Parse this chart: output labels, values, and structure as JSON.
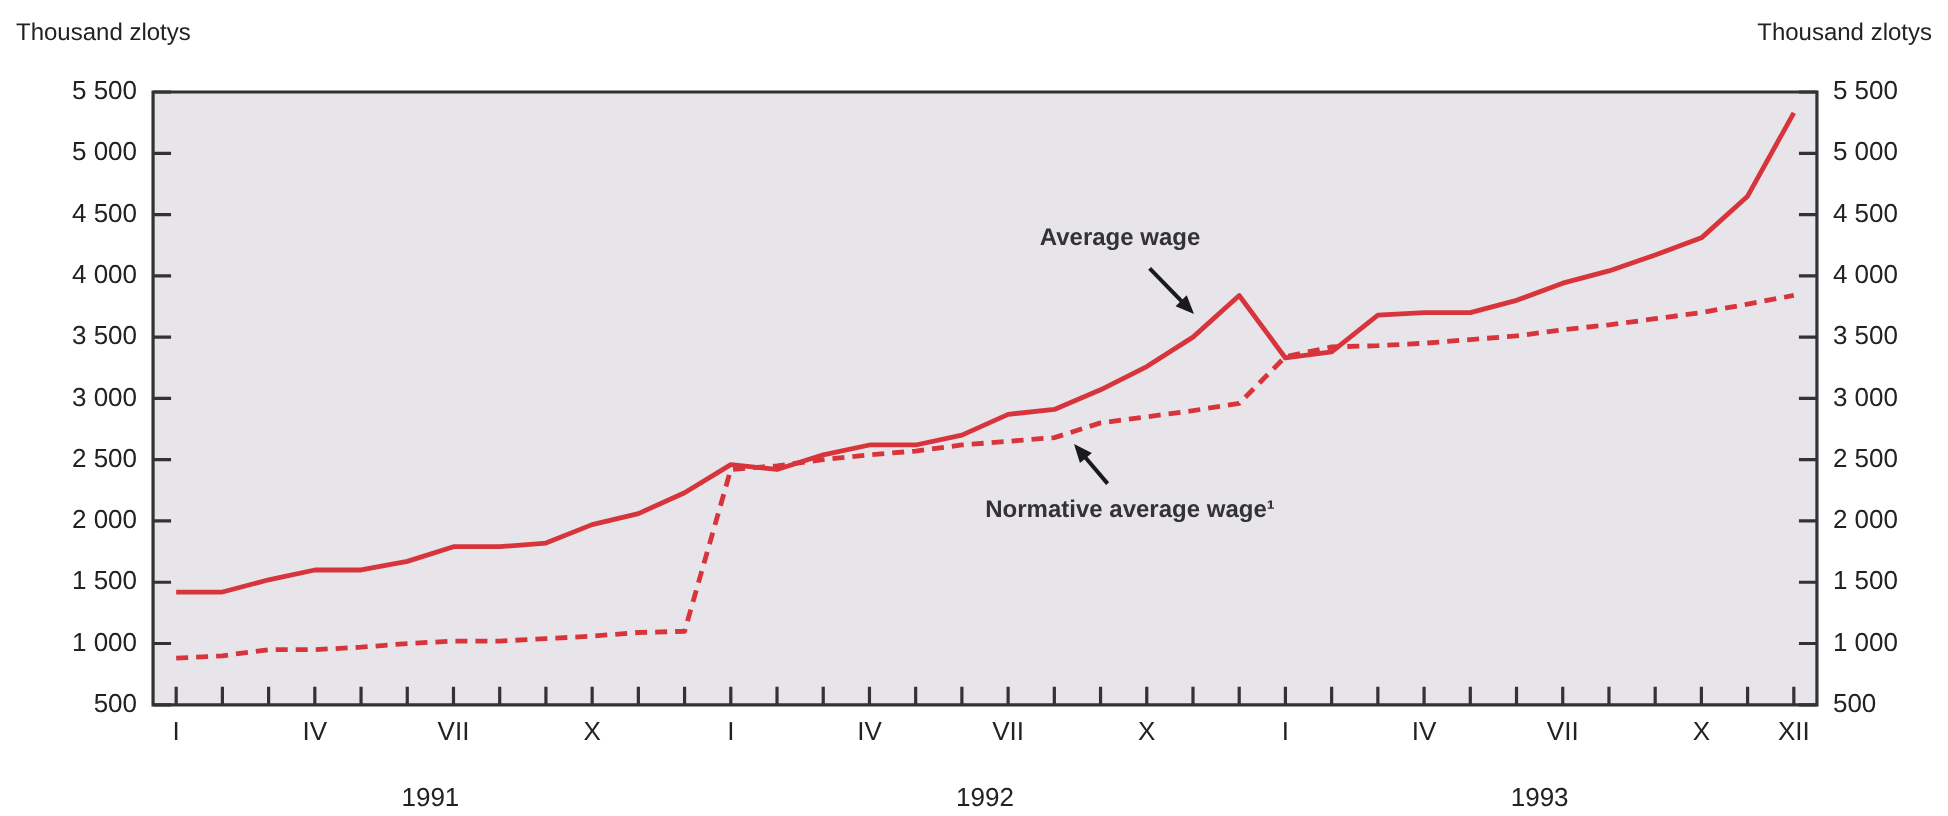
{
  "chart_data": {
    "type": "line",
    "ylabel": "Thousand zlotys",
    "y2label": "Thousand zlotys",
    "categories": [
      "I",
      null,
      null,
      "IV",
      null,
      null,
      "VII",
      null,
      null,
      "X",
      null,
      null,
      "I",
      null,
      null,
      "IV",
      null,
      null,
      "VII",
      null,
      null,
      "X",
      null,
      null,
      "I",
      null,
      null,
      "IV",
      null,
      null,
      "VII",
      null,
      null,
      "X",
      null,
      "XII"
    ],
    "series": [
      {
        "color": "#d8343c",
        "line_style": "solid",
        "values": [
          1420,
          1420,
          1520,
          1600,
          1600,
          1670,
          1790,
          1790,
          1820,
          1970,
          2060,
          2230,
          2460,
          2420,
          2540,
          2620,
          2620,
          2700,
          2870,
          2910,
          3070,
          3260,
          3500,
          3840,
          3330,
          3380,
          3680,
          3700,
          3700,
          3800,
          3940,
          4040,
          4170,
          4310,
          4650,
          5330
        ]
      },
      {
        "color": "#d8343c",
        "line_style": "dashed",
        "values": [
          880,
          900,
          950,
          950,
          970,
          1000,
          1020,
          1020,
          1040,
          1060,
          1090,
          1100,
          2420,
          2450,
          2500,
          2540,
          2570,
          2620,
          2650,
          2680,
          2800,
          2850,
          2900,
          2960,
          3340,
          3420,
          3430,
          3450,
          3480,
          3510,
          3560,
          3600,
          3650,
          3700,
          3770,
          3840
        ]
      }
    ],
    "ylim": [
      500,
      5500
    ],
    "yticks": [
      500,
      {
        "value": 1000,
        "label": "1 000"
      },
      {
        "value": 1500,
        "label": "1 500"
      },
      {
        "value": 2000,
        "label": "2 000"
      },
      {
        "value": 2500,
        "label": "2 500"
      },
      {
        "value": 3000,
        "label": "3 000"
      },
      {
        "value": 3500,
        "label": "3 500"
      },
      {
        "value": 4000,
        "label": "4 000"
      },
      {
        "value": 4500,
        "label": "4 500"
      },
      {
        "value": 5000,
        "label": "5 000"
      },
      {
        "value": 5500,
        "label": "5 500"
      }
    ],
    "y2lim": [
      500,
      5500
    ],
    "y2ticks": [
      500,
      {
        "value": 1000,
        "label": "1 000"
      },
      {
        "value": 1500,
        "label": "1 500"
      },
      {
        "value": 2000,
        "label": "2 000"
      },
      {
        "value": 2500,
        "label": "2 500"
      },
      {
        "value": 3000,
        "label": "3 000"
      },
      {
        "value": 3500,
        "label": "3 500"
      },
      {
        "value": 4000,
        "label": "4 000"
      },
      {
        "value": 4500,
        "label": "4 500"
      },
      {
        "value": 5000,
        "label": "5 000"
      },
      {
        "value": 5500,
        "label": "5 500"
      }
    ],
    "annotations": [
      "Average wage",
      "Normative average wage¹",
      "1991",
      "1992",
      "1993"
    ],
    "grid": false,
    "legend": false,
    "marker": "none"
  }
}
